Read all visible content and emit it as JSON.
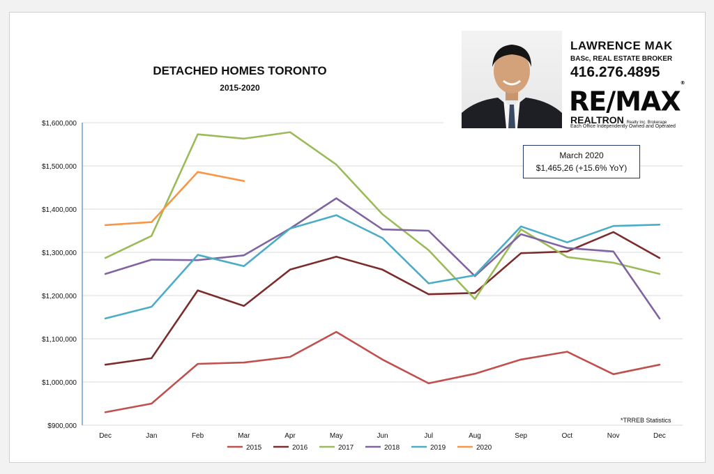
{
  "title": "DETACHED HOMES TORONTO",
  "subtitle": "2015-2020",
  "annotation": {
    "line1": "March 2020",
    "line2": "$1,465,26  (+15.6% YoY)"
  },
  "source_note": "*TRREB Statistics",
  "advertisement": {
    "agent_name": "LAWRENCE MAK",
    "agent_role": "BASc, REAL ESTATE BROKER",
    "phone": "416.276.4895",
    "brand": "RE/MAX",
    "brand_mark": "®",
    "brokerage": "REALTRON",
    "brokerage_suffix": "Realty Inc. Brokerage",
    "office_note": "Each Office Independently Owned and Operated"
  },
  "chart_data": {
    "type": "line",
    "categories": [
      "Dec",
      "Jan",
      "Feb",
      "Mar",
      "Apr",
      "May",
      "Jun",
      "Jul",
      "Aug",
      "Sep",
      "Oct",
      "Nov",
      "Dec"
    ],
    "ylim": [
      900000,
      1600000
    ],
    "yticks": [
      900000,
      1000000,
      1100000,
      1200000,
      1300000,
      1400000,
      1500000,
      1600000
    ],
    "ytick_labels": [
      "$900,000",
      "$1,000,000",
      "$1,100,000",
      "$1,200,000",
      "$1,300,000",
      "$1,400,000",
      "$1,500,000",
      "$1,600,000"
    ],
    "grid": "horizontal",
    "legend_position": "bottom",
    "series": [
      {
        "name": "2015",
        "color": "#c0504d",
        "values": [
          930000,
          950000,
          1042000,
          1045000,
          1058000,
          1116000,
          1052000,
          997000,
          1019000,
          1052000,
          1070000,
          1018000,
          1040000
        ]
      },
      {
        "name": "2016",
        "color": "#7b2c2c",
        "values": [
          1040000,
          1055000,
          1212000,
          1176000,
          1260000,
          1290000,
          1260000,
          1203000,
          1206000,
          1298000,
          1302000,
          1347000,
          1287000
        ]
      },
      {
        "name": "2017",
        "color": "#9bbb59",
        "values": [
          1287000,
          1338000,
          1573000,
          1563000,
          1578000,
          1503000,
          1388000,
          1305000,
          1192000,
          1353000,
          1289000,
          1276000,
          1250000
        ]
      },
      {
        "name": "2018",
        "color": "#8064a2",
        "values": [
          1250000,
          1283000,
          1282000,
          1293000,
          1355000,
          1425000,
          1353000,
          1350000,
          1245000,
          1342000,
          1310000,
          1302000,
          1147000
        ]
      },
      {
        "name": "2019",
        "color": "#4bacc6",
        "values": [
          1147000,
          1174000,
          1294000,
          1268000,
          1355000,
          1386000,
          1333000,
          1228000,
          1247000,
          1360000,
          1323000,
          1361000,
          1364000
        ]
      },
      {
        "name": "2020",
        "color": "#f79646",
        "values": [
          1363000,
          1370000,
          1486000,
          1465000,
          null,
          null,
          null,
          null,
          null,
          null,
          null,
          null,
          null
        ]
      }
    ]
  }
}
